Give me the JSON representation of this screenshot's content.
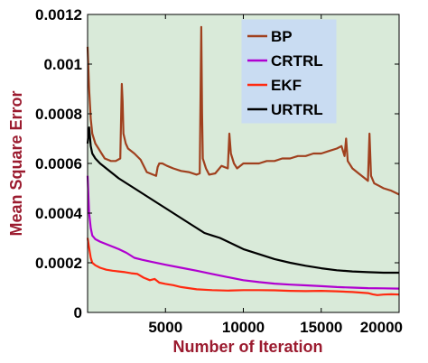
{
  "chart_data": {
    "type": "line",
    "title": "",
    "xlabel": "Number of Iteration",
    "ylabel": "Mean Square Error",
    "xlim": [
      0,
      20000
    ],
    "ylim": [
      0,
      0.0012
    ],
    "xticks": [
      5000,
      10000,
      15000,
      20000
    ],
    "xtick_labels": [
      "5000",
      "10000",
      "15000",
      "20000"
    ],
    "yticks": [
      0,
      0.0002,
      0.0004,
      0.0006,
      0.0008,
      0.001,
      0.0012
    ],
    "ytick_labels": [
      "0",
      "0.0002",
      "0.0004",
      "0.0006",
      "0.0008",
      "0.001",
      "0.0012"
    ],
    "grid": false,
    "legend_position": "top-right",
    "colors": {
      "plot_background": "#d9ead9",
      "legend_background": "#c9dcf2",
      "axis_title": "#9b1b2f"
    },
    "series": [
      {
        "name": "BP",
        "color": "#a0401e",
        "x": [
          0,
          100,
          200,
          300,
          500,
          700,
          900,
          1100,
          1300,
          1500,
          1800,
          2100,
          2200,
          2250,
          2300,
          2450,
          2600,
          3000,
          3400,
          3800,
          4200,
          4400,
          4500,
          4600,
          4800,
          5100,
          5500,
          6000,
          6500,
          7000,
          7200,
          7300,
          7350,
          7400,
          7600,
          7800,
          8200,
          8600,
          9000,
          9100,
          9200,
          9400,
          9600,
          10000,
          10500,
          11000,
          11500,
          12000,
          12500,
          13000,
          13500,
          14000,
          14500,
          15000,
          15500,
          16000,
          16300,
          16500,
          16600,
          16700,
          17000,
          17400,
          17800,
          18000,
          18100,
          18200,
          18400,
          18700,
          19000,
          19500,
          20000
        ],
        "y": [
          0.00107,
          0.0009,
          0.00078,
          0.00072,
          0.00068,
          0.00066,
          0.00064,
          0.00062,
          0.000615,
          0.00061,
          0.00061,
          0.00062,
          0.00092,
          0.00085,
          0.00072,
          0.00068,
          0.00066,
          0.00064,
          0.000615,
          0.000565,
          0.000555,
          0.00055,
          0.000585,
          0.0006,
          0.0006,
          0.00059,
          0.00058,
          0.00057,
          0.000565,
          0.000555,
          0.00056,
          0.00115,
          0.0008,
          0.00062,
          0.00058,
          0.000555,
          0.00056,
          0.00059,
          0.00058,
          0.00072,
          0.00064,
          0.0006,
          0.00058,
          0.0006,
          0.0006,
          0.0006,
          0.00061,
          0.00061,
          0.00062,
          0.00062,
          0.00063,
          0.00063,
          0.00064,
          0.00064,
          0.00065,
          0.00066,
          0.00067,
          0.00063,
          0.0007,
          0.00061,
          0.00058,
          0.00056,
          0.00054,
          0.00053,
          0.00072,
          0.00055,
          0.00052,
          0.00051,
          0.0005,
          0.00049,
          0.000475
        ]
      },
      {
        "name": "CRTRL",
        "color": "#b000d0",
        "x": [
          0,
          100,
          200,
          300,
          500,
          800,
          1200,
          1600,
          2000,
          2500,
          3000,
          3500,
          4000,
          5000,
          6000,
          7000,
          8000,
          9000,
          10000,
          11000,
          12000,
          13000,
          14000,
          15000,
          16000,
          17000,
          18000,
          19000,
          20000
        ],
        "y": [
          0.00055,
          0.0004,
          0.00034,
          0.00031,
          0.000295,
          0.000285,
          0.000275,
          0.000265,
          0.000255,
          0.00024,
          0.00022,
          0.000212,
          0.000205,
          0.000192,
          0.00018,
          0.000168,
          0.000155,
          0.000142,
          0.00013,
          0.000122,
          0.000116,
          0.000112,
          0.000109,
          0.000106,
          0.000102,
          0.0001,
          9.8e-05,
          9.7e-05,
          9.6e-05
        ]
      },
      {
        "name": "EKF",
        "color": "#ff2a10",
        "x": [
          0,
          100,
          200,
          300,
          500,
          800,
          1200,
          1600,
          2000,
          2400,
          2800,
          3200,
          3600,
          4000,
          4300,
          4600,
          5000,
          5500,
          6000,
          6500,
          7000,
          8000,
          9000,
          10000,
          11000,
          12000,
          13000,
          14000,
          15000,
          16000,
          17000,
          17500,
          18000,
          18300,
          18600,
          19000,
          19500,
          20000
        ],
        "y": [
          0.0003,
          0.00026,
          0.00022,
          0.0002,
          0.00019,
          0.00018,
          0.000172,
          0.000168,
          0.000165,
          0.000162,
          0.000158,
          0.000155,
          0.00014,
          0.00013,
          0.000135,
          0.00012,
          0.000115,
          0.00011,
          0.000102,
          9.8e-05,
          9.3e-05,
          9e-05,
          8.8e-05,
          9e-05,
          9e-05,
          8.9e-05,
          8.7e-05,
          8.6e-05,
          8.7e-05,
          8.5e-05,
          8.2e-05,
          8e-05,
          7.8e-05,
          7.3e-05,
          7e-05,
          7.2e-05,
          7.3e-05,
          7.2e-05
        ]
      },
      {
        "name": "URTRL",
        "color": "#000000",
        "x": [
          0,
          100,
          200,
          300,
          500,
          800,
          1200,
          1600,
          2000,
          2500,
          3000,
          3500,
          4000,
          4500,
          5000,
          5500,
          6000,
          6500,
          7000,
          7500,
          8000,
          8500,
          9000,
          9500,
          10000,
          11000,
          12000,
          13000,
          14000,
          15000,
          16000,
          17000,
          18000,
          19000,
          20000
        ],
        "y": [
          0.00068,
          0.000745,
          0.00067,
          0.00064,
          0.00062,
          0.0006,
          0.00058,
          0.00056,
          0.00054,
          0.00052,
          0.0005,
          0.00048,
          0.00046,
          0.00044,
          0.00042,
          0.0004,
          0.00038,
          0.00036,
          0.00034,
          0.00032,
          0.00031,
          0.0003,
          0.000285,
          0.00027,
          0.000255,
          0.000235,
          0.000215,
          0.0002,
          0.000188,
          0.000178,
          0.00017,
          0.000165,
          0.000162,
          0.00016,
          0.00016
        ]
      }
    ]
  }
}
